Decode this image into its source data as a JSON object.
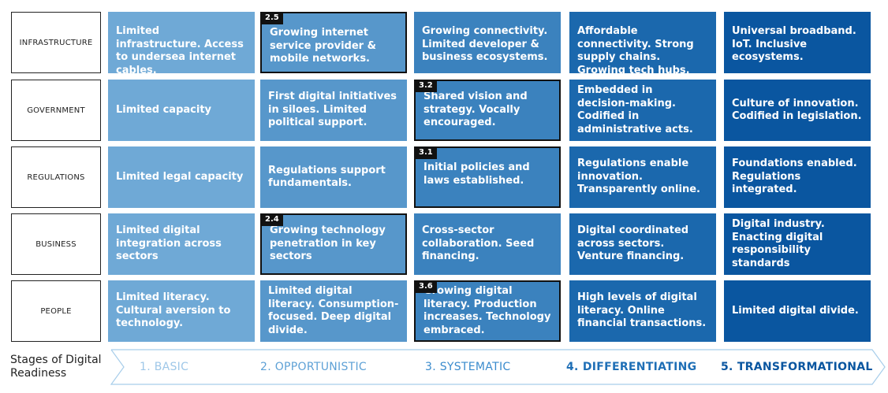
{
  "rows": [
    {
      "label": "INFRASTRUCTURE",
      "cells": [
        {
          "text": "Limited infrastructure. Access to undersea internet cables.",
          "badge": null
        },
        {
          "text": "Growing internet service provider & mobile networks.",
          "badge": "2.5"
        },
        {
          "text": "Growing connectivity. Limited developer & business ecosystems.",
          "badge": null
        },
        {
          "text": "Affordable connectivity. Strong supply chains. Growing tech hubs.",
          "badge": null
        },
        {
          "text": "Universal broadband. IoT. Inclusive ecosystems.",
          "badge": null
        }
      ]
    },
    {
      "label": "GOVERNMENT",
      "cells": [
        {
          "text": "Limited capacity",
          "badge": null
        },
        {
          "text": "First digital initiatives in siloes. Limited political support.",
          "badge": null
        },
        {
          "text": "Shared vision and strategy. Vocally encouraged.",
          "badge": "3.2"
        },
        {
          "text": "Embedded in decision-making. Codified in administrative acts.",
          "badge": null
        },
        {
          "text": "Culture of innovation. Codified in legislation.",
          "badge": null
        }
      ]
    },
    {
      "label": "REGULATIONS",
      "cells": [
        {
          "text": "Limited legal capacity",
          "badge": null
        },
        {
          "text": "Regulations support fundamentals.",
          "badge": null
        },
        {
          "text": "Initial policies and laws established.",
          "badge": "3.1"
        },
        {
          "text": "Regulations enable innovation. Transparently online.",
          "badge": null
        },
        {
          "text": "Foundations enabled. Regulations integrated.",
          "badge": null
        }
      ]
    },
    {
      "label": "BUSINESS",
      "cells": [
        {
          "text": "Limited digital integration across sectors",
          "badge": null
        },
        {
          "text": "Growing technology penetration in key sectors",
          "badge": "2.4"
        },
        {
          "text": "Cross-sector collaboration. Seed financing.",
          "badge": null
        },
        {
          "text": "Digital coordinated across sectors. Venture financing.",
          "badge": null
        },
        {
          "text": "Digital industry. Enacting digital responsibility standards",
          "badge": null
        }
      ]
    },
    {
      "label": "PEOPLE",
      "cells": [
        {
          "text": "Limited literacy. Cultural aversion to technology.",
          "badge": null
        },
        {
          "text": "Limited digital literacy. Consumption-focused. Deep digital divide.",
          "badge": null
        },
        {
          "text": "Growing digital literacy. Production increases. Technology embraced.",
          "badge": "3.6"
        },
        {
          "text": "High levels of digital literacy. Online financial transactions.",
          "badge": null
        },
        {
          "text": "Limited digital divide.",
          "badge": null
        }
      ]
    }
  ],
  "footer": {
    "label": "Stages of Digital Readiness",
    "stages": [
      "1. BASIC",
      "2. OPPORTUNISTIC",
      "3. SYSTEMATIC",
      "4. DIFFERENTIATING",
      "5. TRANSFORMATIONAL"
    ]
  },
  "colors": {
    "stage_columns": [
      "#6fa9d6",
      "#5797cb",
      "#3b82be",
      "#1b68ad",
      "#0a56a0"
    ],
    "stage_text": [
      "#9ec7e8",
      "#5ea1d6",
      "#3a8bcd",
      "#1f6fb6",
      "#0a56a0"
    ],
    "badge": "#111111"
  }
}
